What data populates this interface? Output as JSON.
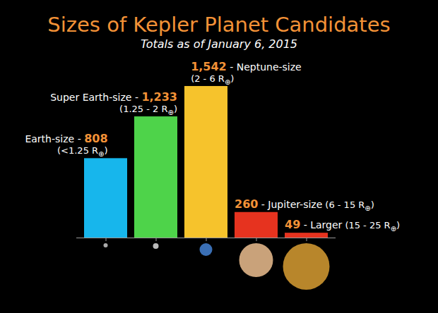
{
  "chart_data": {
    "type": "bar",
    "title": "Sizes of Kepler Planet Candidates",
    "subtitle": "Totals as of January 6, 2015",
    "categories": [
      "Earth-size",
      "Super Earth-size",
      "Neptune-size",
      "Jupiter-size",
      "Larger"
    ],
    "size_ranges": [
      "(<1.25 R⊕)",
      "(1.25 - 2 R⊕)",
      "(2 - 6 R⊕)",
      "(6 - 15 R⊕)",
      "(15 - 25 R⊕)"
    ],
    "separator": " - ",
    "values": [
      808,
      1233,
      1542,
      260,
      49
    ],
    "value_labels": [
      "808",
      "1,233",
      "1,542",
      "260",
      "49"
    ],
    "colors": [
      "#17b6ec",
      "#4ed34a",
      "#f6c32c",
      "#e6331f",
      "#e6331f"
    ],
    "ylim": [
      0,
      1700
    ],
    "grid": false,
    "data_labels": true,
    "tick_labels": false
  }
}
